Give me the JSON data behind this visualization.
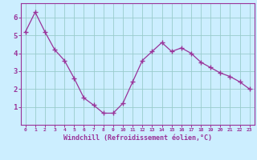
{
  "x": [
    0,
    1,
    2,
    3,
    4,
    5,
    6,
    7,
    8,
    9,
    10,
    11,
    12,
    13,
    14,
    15,
    16,
    17,
    18,
    19,
    20,
    21,
    22,
    23
  ],
  "y": [
    5.2,
    6.3,
    5.2,
    4.2,
    3.6,
    2.6,
    1.5,
    1.1,
    0.65,
    0.65,
    1.2,
    2.4,
    3.6,
    4.1,
    4.6,
    4.1,
    4.3,
    4.0,
    3.5,
    3.2,
    2.9,
    2.7,
    2.4,
    2.0
  ],
  "line_color": "#993399",
  "marker": "+",
  "marker_size": 4,
  "bg_color": "#cceeff",
  "grid_color": "#99cccc",
  "xlabel": "Windchill (Refroidissement éolien,°C)",
  "xlabel_color": "#993399",
  "tick_color": "#993399",
  "axis_color": "#993399",
  "ylim": [
    0,
    6.8
  ],
  "xlim": [
    -0.5,
    23.5
  ],
  "yticks": [
    1,
    2,
    3,
    4,
    5,
    6
  ],
  "xticks": [
    0,
    1,
    2,
    3,
    4,
    5,
    6,
    7,
    8,
    9,
    10,
    11,
    12,
    13,
    14,
    15,
    16,
    17,
    18,
    19,
    20,
    21,
    22,
    23
  ],
  "xtick_labels": [
    "0",
    "1",
    "2",
    "3",
    "4",
    "5",
    "6",
    "7",
    "8",
    "9",
    "10",
    "11",
    "12",
    "13",
    "14",
    "15",
    "16",
    "17",
    "18",
    "19",
    "20",
    "21",
    "22",
    "23"
  ]
}
